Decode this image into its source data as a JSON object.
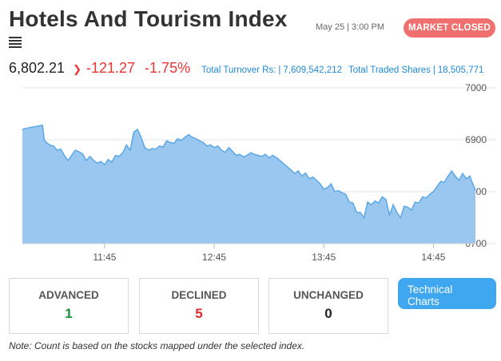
{
  "header": {
    "title": "Hotels And Tourism Index",
    "datetime": "May 25 | 3:00 PM",
    "status": "MARKET CLOSED"
  },
  "summary": {
    "index_value": "6,802.21",
    "change": "-121.27",
    "change_pct": "-1.75%",
    "turnover_label": "Total Turnover Rs:",
    "turnover_value": "7,609,542,212",
    "traded_label": "Total Traded Shares",
    "traded_value": "18,505,771"
  },
  "chart_data": {
    "type": "area",
    "title": "",
    "xlabel": "",
    "ylabel": "",
    "x_ticks": [
      "11:45",
      "12:45",
      "13:45",
      "14:45"
    ],
    "y_ticks": [
      7000,
      6900,
      6800,
      6700
    ],
    "ylim": [
      6700,
      7000
    ],
    "x_range_minutes": [
      660,
      908
    ],
    "x_tick_minutes": [
      705,
      765,
      825,
      885
    ],
    "series": [
      {
        "x": [
          660,
          662,
          665,
          668,
          671,
          672,
          673,
          675,
          677,
          679,
          681,
          683,
          685,
          687,
          689,
          691,
          693,
          695,
          697,
          699,
          701,
          703,
          705,
          707,
          709,
          711,
          713,
          715,
          717,
          719,
          721,
          723,
          725,
          727,
          729,
          731,
          733,
          735,
          737,
          739,
          741,
          743,
          745,
          747,
          749,
          751,
          753,
          755,
          757,
          759,
          761,
          763,
          765,
          767,
          769,
          771,
          773,
          775,
          777,
          779,
          781,
          783,
          785,
          787,
          789,
          791,
          793,
          795,
          797,
          799,
          801,
          803,
          805,
          807,
          809,
          811,
          813,
          815,
          817,
          819,
          821,
          823,
          825,
          827,
          829,
          831,
          833,
          835,
          837,
          839,
          841,
          843,
          845,
          847,
          849,
          851,
          853,
          855,
          857,
          859,
          861,
          863,
          865,
          867,
          869,
          871,
          873,
          875,
          877,
          879,
          881,
          883,
          885,
          887,
          889,
          891,
          893,
          895,
          897,
          899,
          901,
          903,
          905,
          906,
          908
        ],
        "values": [
          6920,
          6922,
          6924,
          6926,
          6928,
          6900,
          6895,
          6890,
          6888,
          6880,
          6882,
          6870,
          6860,
          6870,
          6880,
          6877,
          6873,
          6860,
          6868,
          6860,
          6855,
          6858,
          6852,
          6862,
          6857,
          6870,
          6868,
          6875,
          6890,
          6880,
          6915,
          6920,
          6905,
          6885,
          6880,
          6883,
          6882,
          6888,
          6886,
          6898,
          6895,
          6893,
          6902,
          6899,
          6905,
          6910,
          6905,
          6902,
          6898,
          6895,
          6888,
          6890,
          6885,
          6888,
          6880,
          6876,
          6885,
          6878,
          6870,
          6872,
          6867,
          6870,
          6875,
          6872,
          6870,
          6868,
          6872,
          6865,
          6870,
          6866,
          6860,
          6854,
          6848,
          6842,
          6835,
          6840,
          6830,
          6836,
          6825,
          6828,
          6822,
          6815,
          6805,
          6808,
          6815,
          6800,
          6802,
          6798,
          6795,
          6780,
          6778,
          6760,
          6760,
          6750,
          6780,
          6775,
          6782,
          6778,
          6790,
          6785,
          6755,
          6775,
          6760,
          6750,
          6772,
          6770,
          6765,
          6780,
          6778,
          6790,
          6788,
          6795,
          6800,
          6810,
          6820,
          6818,
          6830,
          6840,
          6830,
          6822,
          6835,
          6825,
          6830,
          6820,
          6802
        ]
      }
    ],
    "colors": {
      "fill": "#9ac7f0",
      "line": "#5aa8e6"
    }
  },
  "cards": {
    "advanced": {
      "label": "ADVANCED",
      "value": "1",
      "color": "#1a8f3c"
    },
    "declined": {
      "label": "DECLINED",
      "value": "5",
      "color": "#e02a2a"
    },
    "unchanged": {
      "label": "UNCHANGED",
      "value": "0",
      "color": "#222222"
    }
  },
  "buttons": {
    "technical_line1": "Technical",
    "technical_line2": "Charts"
  },
  "note": "Note: Count is based on the stocks mapped under the selected index."
}
